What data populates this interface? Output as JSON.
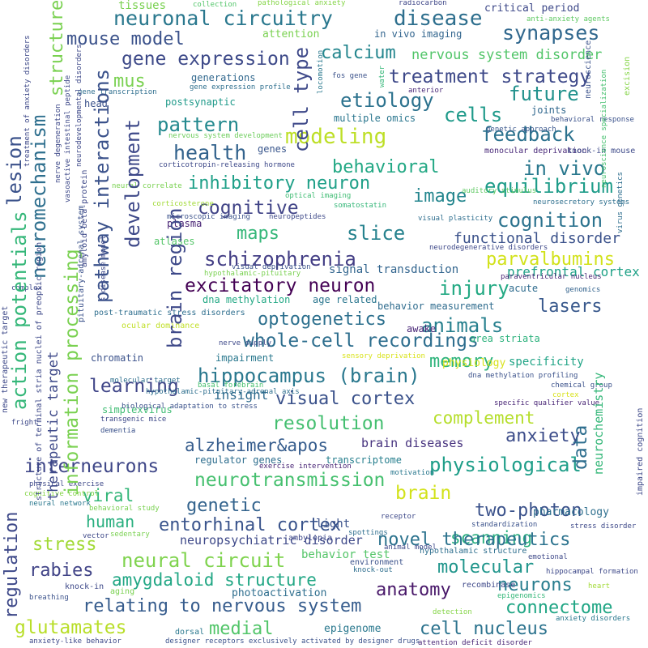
{
  "words": [
    {
      "text": "neuronal circuitry",
      "color": "#2a788e"
    },
    {
      "text": "disease",
      "color": "#2e6f8e"
    },
    {
      "text": "synapses",
      "color": "#31688e"
    },
    {
      "text": "mouse model",
      "color": "#3b528b"
    },
    {
      "text": "gene expression",
      "color": "#3e4a89"
    },
    {
      "text": "calcium",
      "color": "#24868e"
    },
    {
      "text": "nervous system disorder",
      "color": "#52c569"
    },
    {
      "text": "treatment strategy",
      "color": "#3e4989"
    },
    {
      "text": "mus",
      "color": "#7ad151"
    },
    {
      "text": "etiology",
      "color": "#2c728e"
    },
    {
      "text": "future",
      "color": "#21918c"
    },
    {
      "text": "cells",
      "color": "#1f9a8a"
    },
    {
      "text": "pattern",
      "color": "#23898e"
    },
    {
      "text": "health",
      "color": "#33638d"
    },
    {
      "text": "modeling",
      "color": "#bddf26"
    },
    {
      "text": "feedback",
      "color": "#2c728e"
    },
    {
      "text": "behavioral",
      "color": "#22a884"
    },
    {
      "text": "in vivo",
      "color": "#2a788e"
    },
    {
      "text": "inhibitory neuron",
      "color": "#1fa088"
    },
    {
      "text": "equilibrium",
      "color": "#1e9c89"
    },
    {
      "text": "cognitive",
      "color": "#414487"
    },
    {
      "text": "image",
      "color": "#24868e"
    },
    {
      "text": "cognition",
      "color": "#2c738e"
    },
    {
      "text": "maps",
      "color": "#35b779"
    },
    {
      "text": "slice",
      "color": "#26828e"
    },
    {
      "text": "functional disorder",
      "color": "#3b528b"
    },
    {
      "text": "schizophrenia",
      "color": "#433e85"
    },
    {
      "text": "parvalbumins",
      "color": "#d2e21b"
    },
    {
      "text": "prefrontal cortex",
      "color": "#1fa187"
    },
    {
      "text": "excitatory neuron",
      "color": "#440154"
    },
    {
      "text": "injury",
      "color": "#23a983"
    },
    {
      "text": "lasers",
      "color": "#38588c"
    },
    {
      "text": "optogenetics",
      "color": "#2d708e"
    },
    {
      "text": "animals",
      "color": "#27808e"
    },
    {
      "text": "whole-cell recordings",
      "color": "#2e6e8e"
    },
    {
      "text": "memory",
      "color": "#2fb47c"
    },
    {
      "text": "hippocampus (brain)",
      "color": "#2a788e"
    },
    {
      "text": "learning",
      "color": "#404688"
    },
    {
      "text": "visual cortex",
      "color": "#3b528b"
    },
    {
      "text": "resolution",
      "color": "#44bf70"
    },
    {
      "text": "complement",
      "color": "#b5de2b"
    },
    {
      "text": "alzheimer&apos",
      "color": "#365d8d"
    },
    {
      "text": "anxiety",
      "color": "#3d4d8a"
    },
    {
      "text": "interneurons",
      "color": "#3f4788"
    },
    {
      "text": "physiological",
      "color": "#1f9e89"
    },
    {
      "text": "neurotransmission",
      "color": "#46c06f"
    },
    {
      "text": "brain",
      "color": "#d2e21b"
    },
    {
      "text": "viral",
      "color": "#34b679"
    },
    {
      "text": "genetic",
      "color": "#33638d"
    },
    {
      "text": "two-photon",
      "color": "#3b528b"
    },
    {
      "text": "human",
      "color": "#29af7f"
    },
    {
      "text": "scanning",
      "color": "#2ab07f"
    },
    {
      "text": "entorhinal cortex",
      "color": "#3a548c"
    },
    {
      "text": "novel therapeutics",
      "color": "#2c738e"
    },
    {
      "text": "stress",
      "color": "#a2da37"
    },
    {
      "text": "neural circuit",
      "color": "#7fd34e"
    },
    {
      "text": "rabies",
      "color": "#414487"
    },
    {
      "text": "amygdaloid structure",
      "color": "#22a785"
    },
    {
      "text": "molecular",
      "color": "#1f958b"
    },
    {
      "text": "neurons",
      "color": "#287d8e"
    },
    {
      "text": "relating to nervous system",
      "color": "#365c8d"
    },
    {
      "text": "anatomy",
      "color": "#481769"
    },
    {
      "text": "connectome",
      "color": "#21a685"
    },
    {
      "text": "glutamates",
      "color": "#b8de29"
    },
    {
      "text": "medial",
      "color": "#52c569"
    },
    {
      "text": "cell nucleus",
      "color": "#2c738e"
    },
    {
      "text": "brain diseases",
      "color": "#46327e"
    },
    {
      "text": "regulator genes",
      "color": "#2e6e8e"
    },
    {
      "text": "transcriptome",
      "color": "#277f8e"
    },
    {
      "text": "insight",
      "color": "#2f6b8e"
    },
    {
      "text": "simplexvirus",
      "color": "#3fbc73"
    },
    {
      "text": "chromatin",
      "color": "#3b528b"
    },
    {
      "text": "impairment",
      "color": "#2a788e"
    },
    {
      "text": "physiology",
      "color": "#d8e219"
    },
    {
      "text": "specificity",
      "color": "#20a486"
    },
    {
      "text": "area striata",
      "color": "#2db27d"
    },
    {
      "text": "awake",
      "color": "#482677"
    },
    {
      "text": "behavior measurement",
      "color": "#2f6c8e"
    },
    {
      "text": "age related",
      "color": "#2a768e"
    },
    {
      "text": "dna methylation",
      "color": "#22a884"
    },
    {
      "text": "acute",
      "color": "#2f6c8e"
    },
    {
      "text": "signal transduction",
      "color": "#32658e"
    },
    {
      "text": "atlases",
      "color": "#54c568"
    },
    {
      "text": "plasma",
      "color": "#482475"
    },
    {
      "text": "corticotropin-releasing hormone",
      "color": "#3e4989"
    },
    {
      "text": "genes",
      "color": "#39568c"
    },
    {
      "text": "multiple omics",
      "color": "#2a768e"
    },
    {
      "text": "joints",
      "color": "#31688e"
    },
    {
      "text": "genetic approach",
      "color": "#39568c"
    },
    {
      "text": "monocular deprivation",
      "color": "#482878"
    },
    {
      "text": "knock-in mouse",
      "color": "#3e4a89"
    },
    {
      "text": "behavioral response",
      "color": "#3b528b"
    },
    {
      "text": "anti-anxiety agents",
      "color": "#5ec962"
    },
    {
      "text": "critical period",
      "color": "#3e4989"
    },
    {
      "text": "attention",
      "color": "#7ad151"
    },
    {
      "text": "in vivo imaging",
      "color": "#32658e"
    },
    {
      "text": "tissues",
      "color": "#7ad151"
    },
    {
      "text": "collection",
      "color": "#52c569"
    },
    {
      "text": "pathological anxiety",
      "color": "#86d549"
    },
    {
      "text": "radiocarbon",
      "color": "#3f4788"
    },
    {
      "text": "generations",
      "color": "#31688e"
    },
    {
      "text": "gene expression profile",
      "color": "#2e6f8e"
    },
    {
      "text": "postsynaptic",
      "color": "#1f9a8a"
    },
    {
      "text": "head",
      "color": "#3b528b"
    },
    {
      "text": "nervous system development",
      "color": "#6ccd5a"
    },
    {
      "text": "neuroscience",
      "color": "#3b528b"
    },
    {
      "text": "virus genetics",
      "color": "#2e6e8e"
    },
    {
      "text": "excision",
      "color": "#86d549"
    },
    {
      "text": "fos gene",
      "color": "#3b528b"
    },
    {
      "text": "locomotion",
      "color": "#2a788e"
    },
    {
      "text": "water",
      "color": "#35b779"
    },
    {
      "text": "anterior",
      "color": "#482878"
    },
    {
      "text": "neuroscience specialization",
      "color": "#46c06f"
    },
    {
      "text": "auditory stimulus",
      "color": "#5ec962"
    },
    {
      "text": "neurosecretory systems",
      "color": "#2e6f8e"
    },
    {
      "text": "visual plasticity",
      "color": "#2e6e8e"
    },
    {
      "text": "neural correlate",
      "color": "#7ad151"
    },
    {
      "text": "optical imaging",
      "color": "#3fbc73"
    },
    {
      "text": "corticosterone",
      "color": "#a2da37"
    },
    {
      "text": "somatostatin",
      "color": "#35b779"
    },
    {
      "text": "microscopic imaging",
      "color": "#3b528b"
    },
    {
      "text": "neuropeptides",
      "color": "#3e4989"
    },
    {
      "text": "neurodegenerative disorders",
      "color": "#3e4989"
    },
    {
      "text": "visual deprivation",
      "color": "#3b528b"
    },
    {
      "text": "hypothalamic-pituitary",
      "color": "#7ad151"
    },
    {
      "text": "paraventricular nucleus",
      "color": "#482475"
    },
    {
      "text": "genomics",
      "color": "#33638d"
    },
    {
      "text": "post-traumatic stress disorders",
      "color": "#2e6e8e"
    },
    {
      "text": "ocular dominance",
      "color": "#c0df25"
    },
    {
      "text": "nerve supply",
      "color": "#3e4989"
    },
    {
      "text": "sensory deprivation",
      "color": "#d8e219"
    },
    {
      "text": "dna methylation profiling",
      "color": "#3b528b"
    },
    {
      "text": "chemical group",
      "color": "#3b528b"
    },
    {
      "text": "cortex",
      "color": "#d8e219"
    },
    {
      "text": "specific qualifier value",
      "color": "#482475"
    },
    {
      "text": "molecular target",
      "color": "#2e6f8e"
    },
    {
      "text": "basal forebrain",
      "color": "#46c06f"
    },
    {
      "text": "hypothalamic-pituitary-adrenal axis",
      "color": "#2e6f8e"
    },
    {
      "text": "biological adaptation to stress",
      "color": "#3b528b"
    },
    {
      "text": "transgenic mice",
      "color": "#3e4989"
    },
    {
      "text": "dementia",
      "color": "#3b528b"
    },
    {
      "text": "exercise intervention",
      "color": "#482475"
    },
    {
      "text": "motivation",
      "color": "#2a788e"
    },
    {
      "text": "receptor",
      "color": "#3e4989"
    },
    {
      "text": "spottings",
      "color": "#2e6e8e"
    },
    {
      "text": "standardization",
      "color": "#3b528b"
    },
    {
      "text": "pharmacology",
      "color": "#2e6f8e"
    },
    {
      "text": "stress disorder",
      "color": "#3e4989"
    },
    {
      "text": "hypothalamic structure",
      "color": "#2e6f8e"
    },
    {
      "text": "emotional",
      "color": "#3e4989"
    },
    {
      "text": "hippocampal formation",
      "color": "#3e4989"
    },
    {
      "text": "heart",
      "color": "#a2da37"
    },
    {
      "text": "epigenomics",
      "color": "#35b779"
    },
    {
      "text": "anxiety disorders",
      "color": "#2a788e"
    },
    {
      "text": "attention deficit disorder",
      "color": "#482475"
    },
    {
      "text": "detection",
      "color": "#86d549"
    },
    {
      "text": "recombinase",
      "color": "#3e4989"
    },
    {
      "text": "environment",
      "color": "#3b528b"
    },
    {
      "text": "knock-out",
      "color": "#2e6e8e"
    },
    {
      "text": "animal model",
      "color": "#3e4989"
    },
    {
      "text": "ambylopia",
      "color": "#3e4989"
    },
    {
      "text": "light",
      "color": "#3b528b"
    },
    {
      "text": "neuropsychiatric disorder",
      "color": "#3e4989"
    },
    {
      "text": "behavior test",
      "color": "#54c568"
    },
    {
      "text": "photoactivation",
      "color": "#2e6e8e"
    },
    {
      "text": "epigenome",
      "color": "#2a788e"
    },
    {
      "text": "dorsal",
      "color": "#2a788e"
    },
    {
      "text": "designer receptors exclusively activated by designer drugs",
      "color": "#3b528b"
    },
    {
      "text": "anxiety-like behavior",
      "color": "#3e4989"
    },
    {
      "text": "aging",
      "color": "#7ad151"
    },
    {
      "text": "knock-in",
      "color": "#3e4989"
    },
    {
      "text": "breathing",
      "color": "#3b528b"
    },
    {
      "text": "vector",
      "color": "#3e4989"
    },
    {
      "text": "sedentary",
      "color": "#7ad151"
    },
    {
      "text": "neural network",
      "color": "#2a788e"
    },
    {
      "text": "behavioral study",
      "color": "#7ad151"
    },
    {
      "text": "physical exercise",
      "color": "#3e4989"
    },
    {
      "text": "cognitive control",
      "color": "#86d549"
    },
    {
      "text": "fright",
      "color": "#3e4989"
    },
    {
      "text": "complex",
      "color": "#3e4989"
    },
    {
      "text": "lesion",
      "color": "#3b528b"
    },
    {
      "text": "neuromechanism",
      "color": "#2e6f8e"
    },
    {
      "text": "action potentials",
      "color": "#35b779"
    },
    {
      "text": "regulation",
      "color": "#3e4989"
    },
    {
      "text": "therapeutic target",
      "color": "#3e4989"
    },
    {
      "text": "information processing",
      "color": "#7ad151"
    },
    {
      "text": "pathway interactions",
      "color": "#3b528b"
    },
    {
      "text": "development",
      "color": "#3e4989"
    },
    {
      "text": "brain region",
      "color": "#3e4989"
    },
    {
      "text": "cell type",
      "color": "#3e4989"
    },
    {
      "text": "structure",
      "color": "#7ad151"
    },
    {
      "text": "data",
      "color": "#2e6e8e"
    },
    {
      "text": "neurochemistry",
      "color": "#35b779"
    },
    {
      "text": "impaired cognition",
      "color": "#3e4989"
    },
    {
      "text": "new therapeutic target",
      "color": "#3e4989"
    },
    {
      "text": "structure of terminal stria nuclei of preoptic region",
      "color": "#3e4989"
    },
    {
      "text": "pituitary-adrenal system",
      "color": "#3b528b"
    },
    {
      "text": "amyloid beta-protein",
      "color": "#3e4989"
    },
    {
      "text": "gene transcription",
      "color": "#2e6e8e"
    },
    {
      "text": "vasoactive intestinal peptide",
      "color": "#3e4989"
    },
    {
      "text": "nerve degeneration",
      "color": "#3e4989"
    },
    {
      "text": "treatment of anxiety disorders",
      "color": "#3e4989"
    },
    {
      "text": "neurodevelopmental disorders",
      "color": "#3e4989"
    },
    {
      "text": "s disease model",
      "color": "#3e4989"
    }
  ]
}
